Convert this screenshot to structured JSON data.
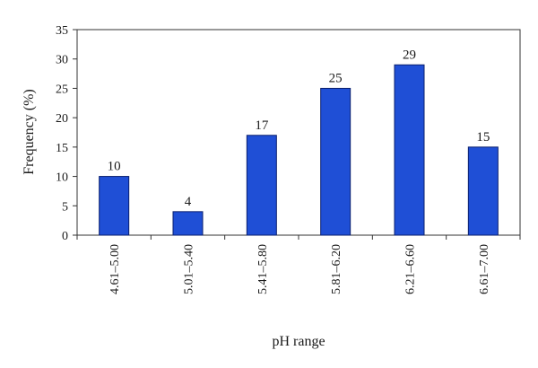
{
  "chart_data": {
    "type": "bar",
    "title": "",
    "xlabel": "pH range",
    "ylabel": "Frequency (%)",
    "categories": [
      "4.61–5.00",
      "5.01–5.40",
      "5.41–5.80",
      "5.81–6.20",
      "6.21–6.60",
      "6.61–7.00"
    ],
    "values": [
      10,
      4,
      17,
      25,
      29,
      15
    ],
    "ylim": [
      0,
      35
    ],
    "yticks": [
      0,
      5,
      10,
      15,
      20,
      25,
      30,
      35
    ],
    "grid": false,
    "legend": "none",
    "bar_color": "#1f4fd6",
    "bar_edge_color": "#0a1f6e"
  }
}
